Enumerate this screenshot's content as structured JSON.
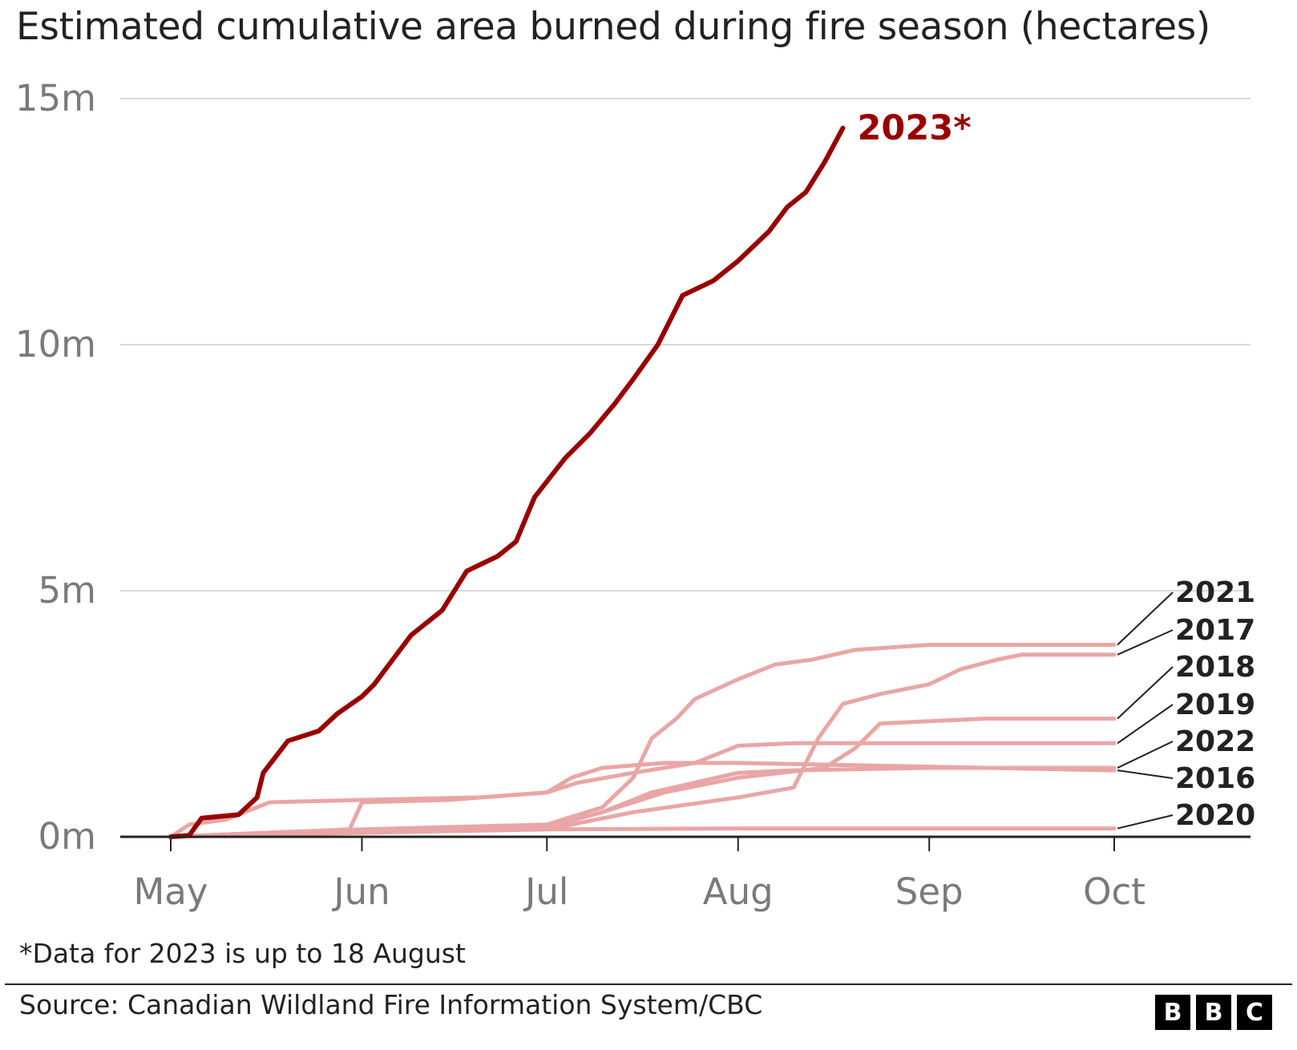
{
  "title": "Estimated cumulative area burned during fire season (hectares)",
  "note": "*Data for 2023 is up to 18 August",
  "source": "Source: Canadian Wildland Fire Information System/CBC",
  "logo": [
    "B",
    "B",
    "C"
  ],
  "colors": {
    "highlight": "#990000",
    "other": "#e9a6a6",
    "grid": "#d9d9d9",
    "axis": "#222222",
    "tick_text": "#7a7a7a"
  },
  "chart_data": {
    "type": "line",
    "title": "Estimated cumulative area burned during fire season (hectares)",
    "xlabel": "",
    "ylabel": "",
    "x_range": [
      "2000-05-01",
      "2000-10-01"
    ],
    "x_tick_labels": [
      "May",
      "Jun",
      "Jul",
      "Aug",
      "Sep",
      "Oct"
    ],
    "x_tick_dates": [
      "2000-05-01",
      "2000-06-01",
      "2000-07-01",
      "2000-08-01",
      "2000-09-01",
      "2000-10-01"
    ],
    "ylim": [
      0,
      15000000
    ],
    "y_ticks": [
      0,
      5000000,
      10000000,
      15000000
    ],
    "y_tick_labels": [
      "0m",
      "5m",
      "10m",
      "15m"
    ],
    "grid": true,
    "series": [
      {
        "name": "2023*",
        "highlight": true,
        "points": [
          [
            "2000-05-01",
            0
          ],
          [
            "2000-05-04",
            30000
          ],
          [
            "2000-05-06",
            380000
          ],
          [
            "2000-05-12",
            450000
          ],
          [
            "2000-05-15",
            800000
          ],
          [
            "2000-05-16",
            1300000
          ],
          [
            "2000-05-20",
            1950000
          ],
          [
            "2000-05-25",
            2150000
          ],
          [
            "2000-05-28",
            2500000
          ],
          [
            "2000-06-01",
            2850000
          ],
          [
            "2000-06-03",
            3100000
          ],
          [
            "2000-06-06",
            3600000
          ],
          [
            "2000-06-09",
            4100000
          ],
          [
            "2000-06-14",
            4600000
          ],
          [
            "2000-06-18",
            5400000
          ],
          [
            "2000-06-23",
            5700000
          ],
          [
            "2000-06-26",
            6000000
          ],
          [
            "2000-06-29",
            6900000
          ],
          [
            "2000-07-04",
            7700000
          ],
          [
            "2000-07-08",
            8200000
          ],
          [
            "2000-07-12",
            8800000
          ],
          [
            "2000-07-15",
            9300000
          ],
          [
            "2000-07-19",
            10000000
          ],
          [
            "2000-07-23",
            11000000
          ],
          [
            "2000-07-28",
            11300000
          ],
          [
            "2000-08-01",
            11700000
          ],
          [
            "2000-08-06",
            12300000
          ],
          [
            "2000-08-09",
            12800000
          ],
          [
            "2000-08-12",
            13100000
          ],
          [
            "2000-08-15",
            13700000
          ],
          [
            "2000-08-18",
            14400000
          ]
        ]
      },
      {
        "name": "2021",
        "points": [
          [
            "2000-05-01",
            0
          ],
          [
            "2000-06-01",
            150000
          ],
          [
            "2000-07-01",
            250000
          ],
          [
            "2000-07-10",
            600000
          ],
          [
            "2000-07-15",
            1200000
          ],
          [
            "2000-07-18",
            2000000
          ],
          [
            "2000-07-22",
            2400000
          ],
          [
            "2000-07-25",
            2800000
          ],
          [
            "2000-08-01",
            3200000
          ],
          [
            "2000-08-07",
            3500000
          ],
          [
            "2000-08-13",
            3600000
          ],
          [
            "2000-08-20",
            3800000
          ],
          [
            "2000-09-01",
            3900000
          ],
          [
            "2000-10-01",
            3900000
          ]
        ]
      },
      {
        "name": "2017",
        "points": [
          [
            "2000-05-01",
            0
          ],
          [
            "2000-06-01",
            80000
          ],
          [
            "2000-07-01",
            150000
          ],
          [
            "2000-07-15",
            500000
          ],
          [
            "2000-08-01",
            800000
          ],
          [
            "2000-08-10",
            1000000
          ],
          [
            "2000-08-14",
            2000000
          ],
          [
            "2000-08-18",
            2700000
          ],
          [
            "2000-08-24",
            2900000
          ],
          [
            "2000-09-01",
            3100000
          ],
          [
            "2000-09-06",
            3400000
          ],
          [
            "2000-09-12",
            3600000
          ],
          [
            "2000-09-16",
            3700000
          ],
          [
            "2000-10-01",
            3700000
          ]
        ]
      },
      {
        "name": "2018",
        "points": [
          [
            "2000-05-01",
            0
          ],
          [
            "2000-06-01",
            100000
          ],
          [
            "2000-07-01",
            200000
          ],
          [
            "2000-07-10",
            500000
          ],
          [
            "2000-07-20",
            900000
          ],
          [
            "2000-08-01",
            1200000
          ],
          [
            "2000-08-15",
            1400000
          ],
          [
            "2000-08-20",
            1800000
          ],
          [
            "2000-08-24",
            2300000
          ],
          [
            "2000-09-01",
            2350000
          ],
          [
            "2000-09-10",
            2400000
          ],
          [
            "2000-10-01",
            2400000
          ]
        ]
      },
      {
        "name": "2019",
        "points": [
          [
            "2000-05-01",
            0
          ],
          [
            "2000-05-30",
            150000
          ],
          [
            "2000-06-01",
            700000
          ],
          [
            "2000-06-15",
            750000
          ],
          [
            "2000-07-01",
            900000
          ],
          [
            "2000-07-06",
            1100000
          ],
          [
            "2000-07-15",
            1300000
          ],
          [
            "2000-07-25",
            1500000
          ],
          [
            "2000-08-01",
            1850000
          ],
          [
            "2000-08-10",
            1900000
          ],
          [
            "2000-09-01",
            1900000
          ],
          [
            "2000-10-01",
            1900000
          ]
        ]
      },
      {
        "name": "2022",
        "points": [
          [
            "2000-05-01",
            0
          ],
          [
            "2000-06-01",
            100000
          ],
          [
            "2000-07-01",
            200000
          ],
          [
            "2000-07-10",
            500000
          ],
          [
            "2000-07-18",
            900000
          ],
          [
            "2000-08-01",
            1300000
          ],
          [
            "2000-08-10",
            1350000
          ],
          [
            "2000-09-01",
            1400000
          ],
          [
            "2000-10-01",
            1400000
          ]
        ]
      },
      {
        "name": "2016",
        "points": [
          [
            "2000-05-01",
            0
          ],
          [
            "2000-05-04",
            250000
          ],
          [
            "2000-05-10",
            350000
          ],
          [
            "2000-05-17",
            700000
          ],
          [
            "2000-06-01",
            750000
          ],
          [
            "2000-06-20",
            800000
          ],
          [
            "2000-07-01",
            900000
          ],
          [
            "2000-07-05",
            1200000
          ],
          [
            "2000-07-10",
            1400000
          ],
          [
            "2000-07-20",
            1500000
          ],
          [
            "2000-08-01",
            1500000
          ],
          [
            "2000-10-01",
            1350000
          ]
        ]
      },
      {
        "name": "2020",
        "points": [
          [
            "2000-05-01",
            0
          ],
          [
            "2000-05-20",
            100000
          ],
          [
            "2000-07-01",
            150000
          ],
          [
            "2000-08-01",
            170000
          ],
          [
            "2000-09-01",
            170000
          ],
          [
            "2000-10-01",
            170000
          ]
        ]
      }
    ],
    "annotations": [
      "2021",
      "2017",
      "2018",
      "2019",
      "2022",
      "2016",
      "2020"
    ]
  }
}
